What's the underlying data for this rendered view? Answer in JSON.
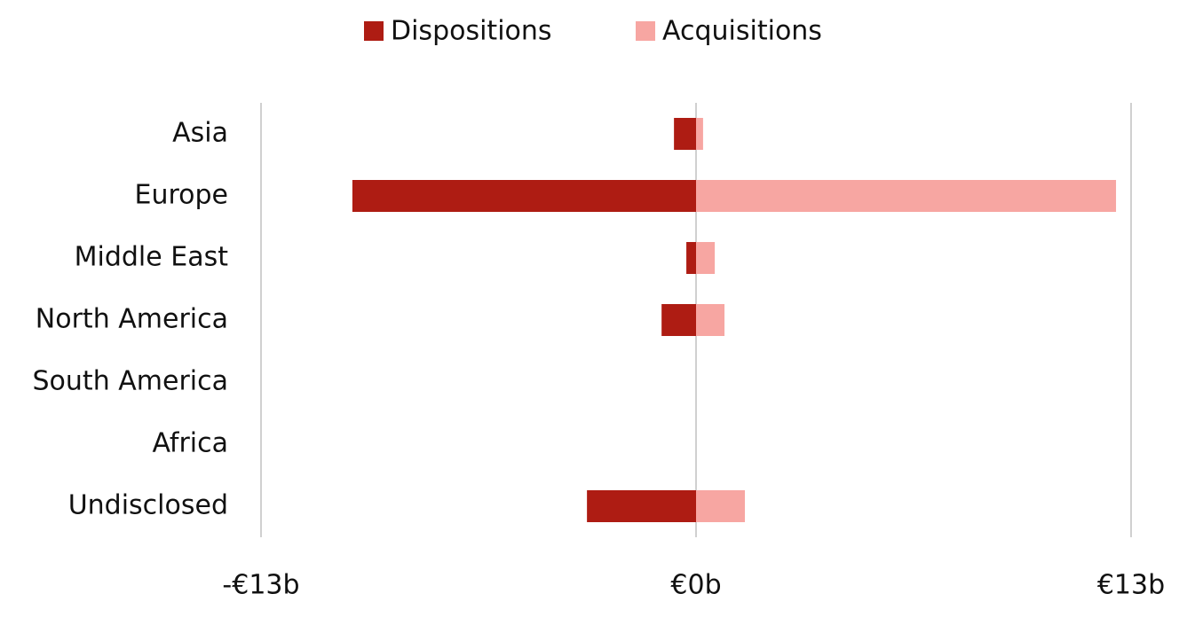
{
  "chart_data": {
    "type": "diverging-bar",
    "categories": [
      "Asia",
      "Europe",
      "Middle East",
      "North America",
      "South America",
      "Africa",
      "Undisclosed"
    ],
    "series": [
      {
        "name": "Dispositions",
        "color": "#ae1c13",
        "values": [
          -0.66,
          -10.27,
          -0.29,
          -1.03,
          0,
          0,
          -3.26
        ]
      },
      {
        "name": "Acquisitions",
        "color": "#f7a6a2",
        "values": [
          0.21,
          12.55,
          0.56,
          0.85,
          0,
          0,
          1.46
        ]
      }
    ],
    "xlim": [
      -13,
      13
    ],
    "xticks": [
      {
        "value": -13,
        "label": "-€13b"
      },
      {
        "value": 0,
        "label": "€0b"
      },
      {
        "value": 13,
        "label": "€13b"
      }
    ],
    "grid": true,
    "legend": "top"
  }
}
